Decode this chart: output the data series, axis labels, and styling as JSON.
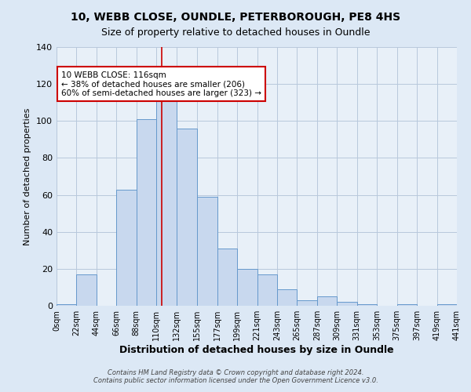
{
  "title_line1": "10, WEBB CLOSE, OUNDLE, PETERBOROUGH, PE8 4HS",
  "title_line2": "Size of property relative to detached houses in Oundle",
  "xlabel": "Distribution of detached houses by size in Oundle",
  "ylabel": "Number of detached properties",
  "bin_edges": [
    0,
    22,
    44,
    66,
    88,
    110,
    132,
    155,
    177,
    199,
    221,
    243,
    265,
    287,
    309,
    331,
    353,
    375,
    397,
    419,
    441
  ],
  "bar_heights": [
    1,
    17,
    0,
    63,
    101,
    111,
    96,
    59,
    31,
    20,
    17,
    9,
    3,
    5,
    2,
    1,
    0,
    1,
    0,
    1
  ],
  "bar_color": "#c8d8ee",
  "bar_edge_color": "#6699cc",
  "vline_x": 116,
  "vline_color": "#cc0000",
  "ylim": [
    0,
    140
  ],
  "yticks": [
    0,
    20,
    40,
    60,
    80,
    100,
    120,
    140
  ],
  "xtick_labels": [
    "0sqm",
    "22sqm",
    "44sqm",
    "66sqm",
    "88sqm",
    "110sqm",
    "132sqm",
    "155sqm",
    "177sqm",
    "199sqm",
    "221sqm",
    "243sqm",
    "265sqm",
    "287sqm",
    "309sqm",
    "331sqm",
    "353sqm",
    "375sqm",
    "397sqm",
    "419sqm",
    "441sqm"
  ],
  "annotation_line1": "10 WEBB CLOSE: 116sqm",
  "annotation_line2": "← 38% of detached houses are smaller (206)",
  "annotation_line3": "60% of semi-detached houses are larger (323) →",
  "annotation_box_color": "#ffffff",
  "annotation_border_color": "#cc0000",
  "footer_line1": "Contains HM Land Registry data © Crown copyright and database right 2024.",
  "footer_line2": "Contains public sector information licensed under the Open Government Licence v3.0.",
  "bg_color": "#dce8f5",
  "plot_bg_color": "#e8f0f8",
  "grid_color": "#b8c8dc",
  "title_fontsize": 10,
  "subtitle_fontsize": 9
}
